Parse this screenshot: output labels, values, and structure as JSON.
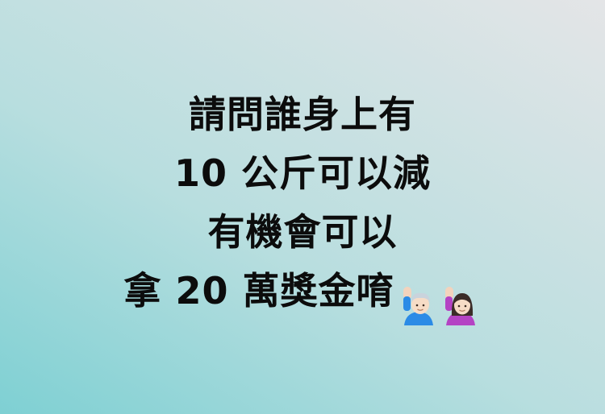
{
  "post": {
    "lines": [
      "請問誰身上有",
      "10 公斤可以減",
      "有機會可以",
      "拿 20 萬獎金唷"
    ],
    "emoji": [
      "man-raising-hand-icon",
      "woman-raising-hand-icon"
    ]
  },
  "colors": {
    "text": "#0c0c0c",
    "background_left": "#7ed0d3",
    "background_right": "#e4e5e7",
    "emoji_man_shirt": "#2b8be6",
    "emoji_woman_shirt": "#b443c4"
  }
}
